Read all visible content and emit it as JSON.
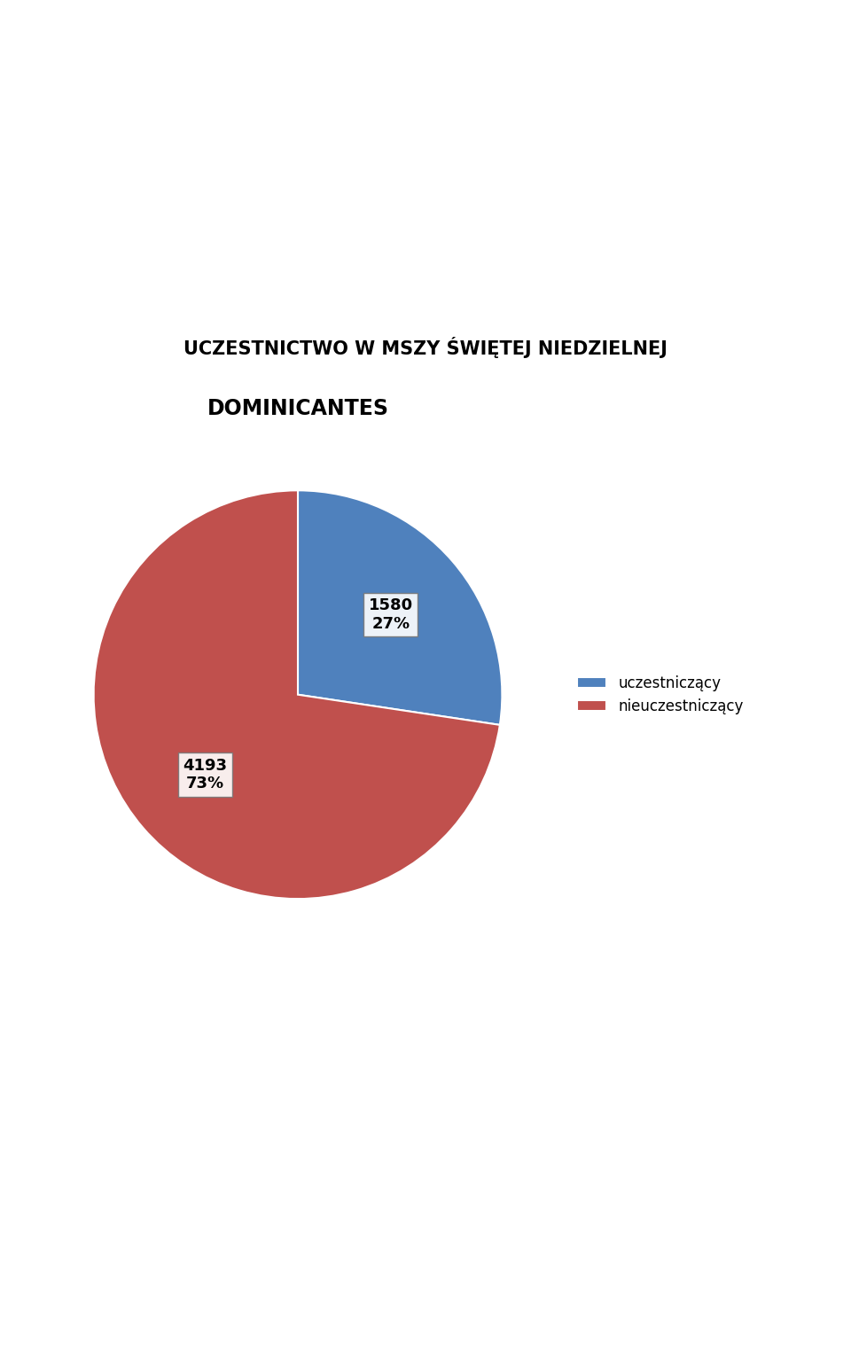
{
  "chart_data": {
    "type": "pie",
    "title": "DOMINICANTES",
    "subtitle": "UCZESTNICTWO W MSZY ŚWIĘTEJ NIEDZIELNEJ",
    "categories": [
      "uczestniczący",
      "nieuczestniczący"
    ],
    "values": [
      1580,
      4193
    ],
    "value_labels": [
      "1580\n27%",
      "4193\n73%"
    ],
    "data_labels": true,
    "colors": [
      "#4f81bd",
      "#c0504d"
    ],
    "legend": "right"
  }
}
